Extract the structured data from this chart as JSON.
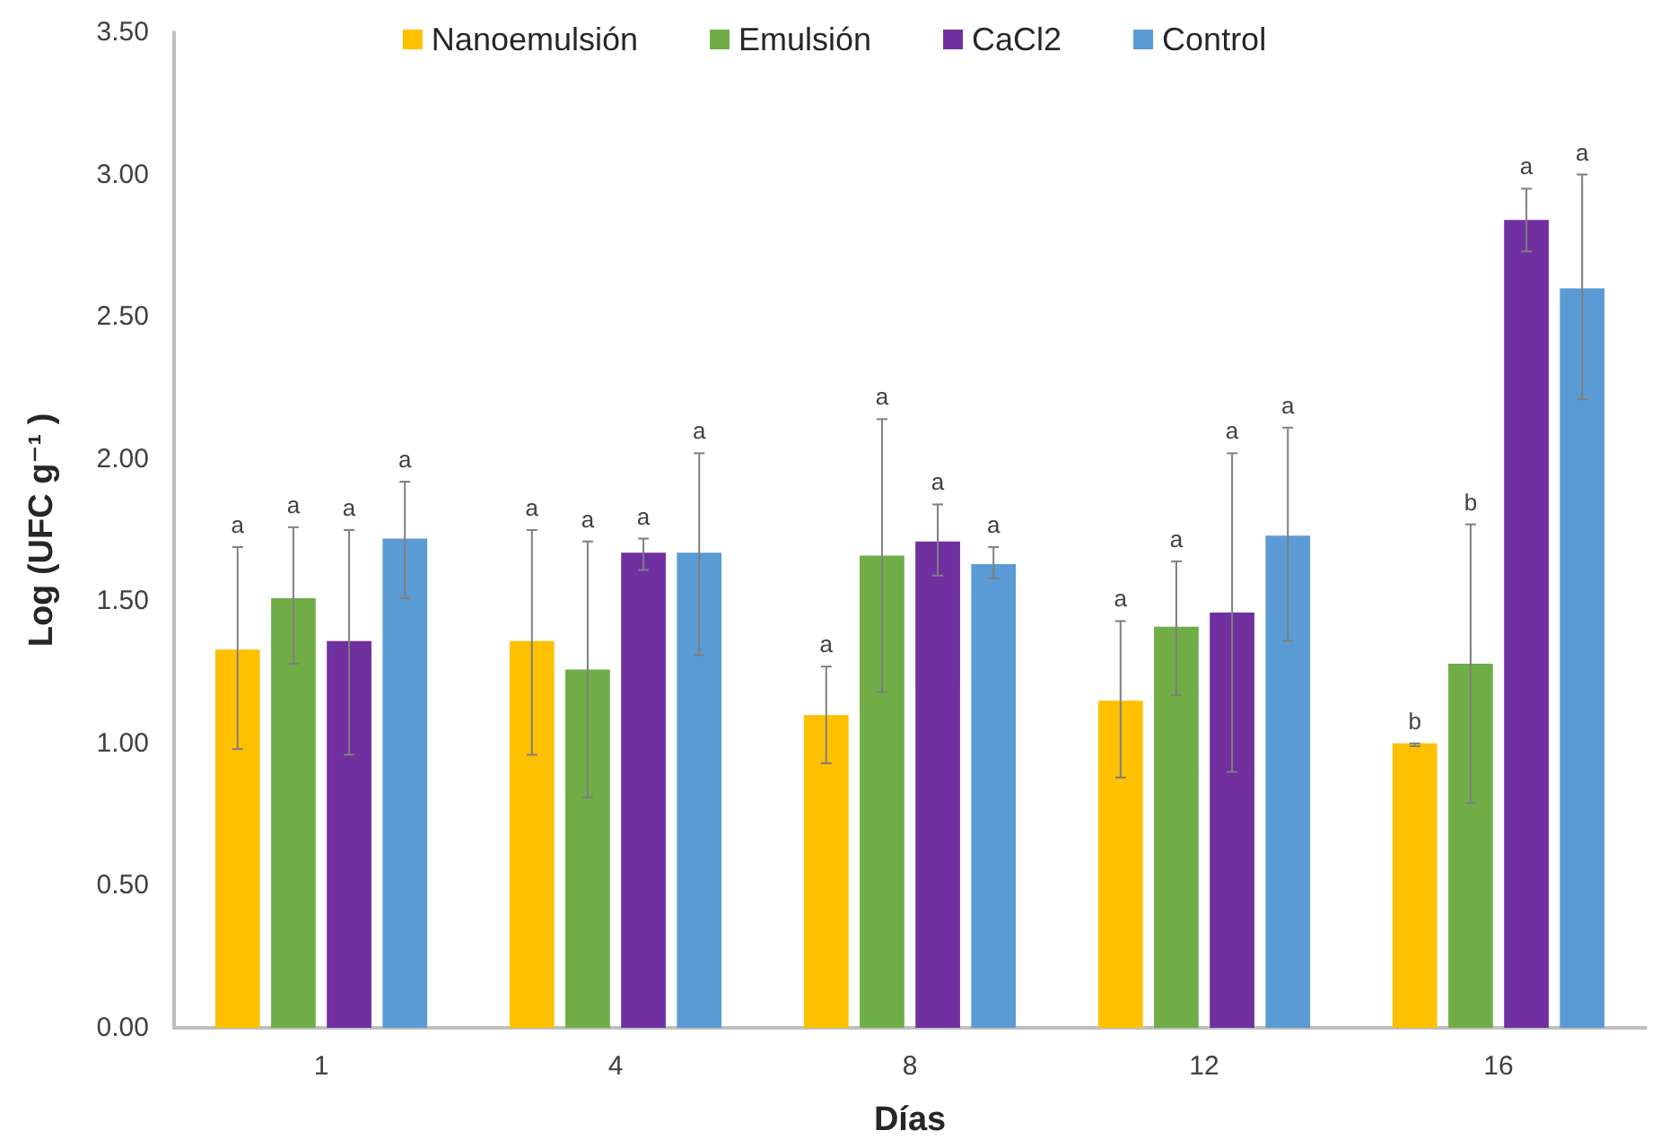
{
  "chart_data": {
    "type": "bar",
    "xlabel": "Días",
    "ylabel": "Log (UFC g⁻¹ )",
    "categories": [
      "1",
      "4",
      "8",
      "12",
      "16"
    ],
    "ylim": [
      0,
      3.5
    ],
    "yticks": [
      {
        "value": 0,
        "label": "0.00"
      },
      {
        "value": 0.5,
        "label": "0.50"
      },
      {
        "value": 1,
        "label": "1.00"
      },
      {
        "value": 1.5,
        "label": "1.50"
      },
      {
        "value": 2,
        "label": "2.00"
      },
      {
        "value": 2.5,
        "label": "2.50"
      },
      {
        "value": 3,
        "label": "3.00"
      },
      {
        "value": 3.5,
        "label": "3.50"
      }
    ],
    "grid": false,
    "legend": "top",
    "annotations": [
      "a",
      "a",
      "a",
      "a",
      "a",
      "a",
      "a",
      "a",
      "a",
      "a",
      "a",
      "a",
      "a",
      "a",
      "a",
      "a",
      "b",
      "b",
      "a",
      "a"
    ],
    "series": [
      {
        "name": "Nanoemulsión",
        "color": "#ffc000",
        "values": [
          1.33,
          1.36,
          1.1,
          1.15,
          1.0
        ],
        "errors": [
          [
            0.98,
            1.69
          ],
          [
            0.96,
            1.75
          ],
          [
            0.93,
            1.27
          ],
          [
            0.88,
            1.43
          ],
          [
            0.99,
            1.0
          ]
        ]
      },
      {
        "name": "Emulsión",
        "color": "#70ad47",
        "values": [
          1.51,
          1.26,
          1.66,
          1.41,
          1.28
        ],
        "errors": [
          [
            1.28,
            1.76
          ],
          [
            0.81,
            1.71
          ],
          [
            1.18,
            2.14
          ],
          [
            1.17,
            1.64
          ],
          [
            0.79,
            1.77
          ]
        ]
      },
      {
        "name": "CaCl2",
        "color": "#7030a0",
        "values": [
          1.36,
          1.67,
          1.71,
          1.46,
          2.84
        ],
        "errors": [
          [
            0.96,
            1.75
          ],
          [
            1.61,
            1.72
          ],
          [
            1.59,
            1.84
          ],
          [
            0.9,
            2.02
          ],
          [
            2.73,
            2.95
          ]
        ]
      },
      {
        "name": "Control",
        "color": "#5b9bd5",
        "values": [
          1.72,
          1.67,
          1.63,
          1.73,
          2.6
        ],
        "errors": [
          [
            1.51,
            1.92
          ],
          [
            1.31,
            2.02
          ],
          [
            1.58,
            1.69
          ],
          [
            1.36,
            2.11
          ],
          [
            2.21,
            3.0
          ]
        ]
      }
    ]
  }
}
